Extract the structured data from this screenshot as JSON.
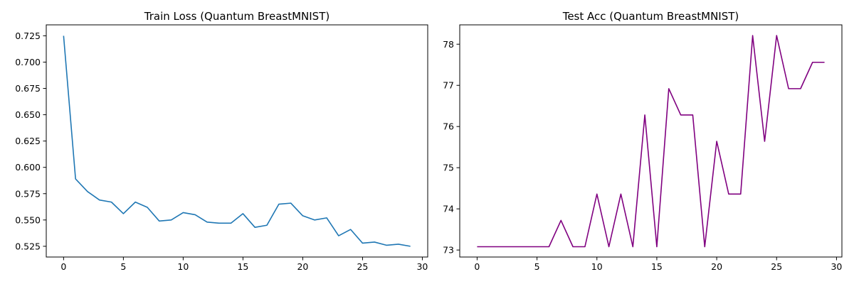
{
  "chart_data": [
    {
      "type": "line",
      "title": "Train Loss (Quantum BreastMNIST)",
      "xlabel": "",
      "ylabel": "",
      "xlim": [
        -1.45,
        30.45
      ],
      "ylim": [
        0.5148,
        0.7354
      ],
      "xticks": [
        0,
        5,
        10,
        15,
        20,
        25,
        30
      ],
      "yticks": [
        0.525,
        0.55,
        0.575,
        0.6,
        0.625,
        0.65,
        0.675,
        0.7,
        0.725
      ],
      "ytick_labels": [
        "0.525",
        "0.550",
        "0.575",
        "0.600",
        "0.625",
        "0.650",
        "0.675",
        "0.700",
        "0.725"
      ],
      "grid": false,
      "series": [
        {
          "color": "#1f77b4",
          "x": [
            0,
            1,
            2,
            3,
            4,
            5,
            6,
            7,
            8,
            9,
            10,
            11,
            12,
            13,
            14,
            15,
            16,
            17,
            18,
            19,
            20,
            21,
            22,
            23,
            24,
            25,
            26,
            27,
            28,
            29
          ],
          "y": [
            0.725,
            0.589,
            0.577,
            0.569,
            0.567,
            0.556,
            0.567,
            0.562,
            0.549,
            0.55,
            0.557,
            0.555,
            0.548,
            0.547,
            0.547,
            0.556,
            0.543,
            0.545,
            0.565,
            0.566,
            0.554,
            0.55,
            0.552,
            0.535,
            0.541,
            0.528,
            0.529,
            0.526,
            0.527,
            0.525
          ]
        }
      ]
    },
    {
      "type": "line",
      "title": "Test Acc (Quantum BreastMNIST)",
      "xlabel": "",
      "ylabel": "",
      "xlim": [
        -1.45,
        30.45
      ],
      "ylim": [
        72.83,
        78.47
      ],
      "xticks": [
        0,
        5,
        10,
        15,
        20,
        25,
        30
      ],
      "yticks": [
        73,
        74,
        75,
        76,
        77,
        78
      ],
      "ytick_labels": [
        "73",
        "74",
        "75",
        "76",
        "77",
        "78"
      ],
      "grid": false,
      "series": [
        {
          "color": "#800080",
          "x": [
            0,
            1,
            2,
            3,
            4,
            5,
            6,
            7,
            8,
            9,
            10,
            11,
            12,
            13,
            14,
            15,
            16,
            17,
            18,
            19,
            20,
            21,
            22,
            23,
            24,
            25,
            26,
            27,
            28,
            29
          ],
          "y": [
            73.08,
            73.08,
            73.08,
            73.08,
            73.08,
            73.08,
            73.08,
            73.72,
            73.08,
            73.08,
            74.36,
            73.08,
            74.36,
            73.08,
            76.28,
            73.08,
            76.92,
            76.28,
            76.28,
            73.08,
            75.64,
            74.36,
            74.36,
            78.21,
            75.64,
            78.21,
            76.92,
            76.92,
            77.56,
            77.56
          ]
        }
      ]
    }
  ]
}
